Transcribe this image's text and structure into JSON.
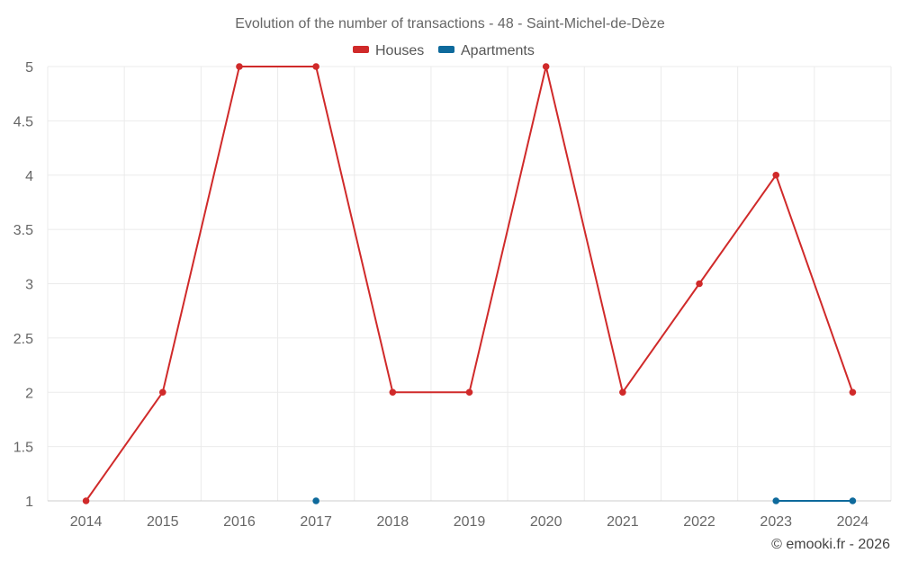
{
  "chart_data": {
    "type": "line",
    "title": "Evolution of the number of transactions - 48 - Saint-Michel-de-Dèze",
    "categories": [
      "2014",
      "2015",
      "2016",
      "2017",
      "2018",
      "2019",
      "2020",
      "2021",
      "2022",
      "2023",
      "2024"
    ],
    "ylim": [
      1,
      5
    ],
    "yticks": [
      1,
      1.5,
      2,
      2.5,
      3,
      3.5,
      4,
      4.5,
      5
    ],
    "series": [
      {
        "name": "Houses",
        "color": "#d02a2a",
        "values": [
          1,
          2,
          5,
          5,
          2,
          2,
          5,
          2,
          3,
          4,
          2
        ]
      },
      {
        "name": "Apartments",
        "color": "#0e6a9c",
        "values": [
          null,
          null,
          null,
          1,
          null,
          null,
          null,
          null,
          null,
          1,
          1
        ]
      }
    ],
    "legend": "top-center",
    "grid": true
  },
  "credit": "© emooki.fr - 2026"
}
